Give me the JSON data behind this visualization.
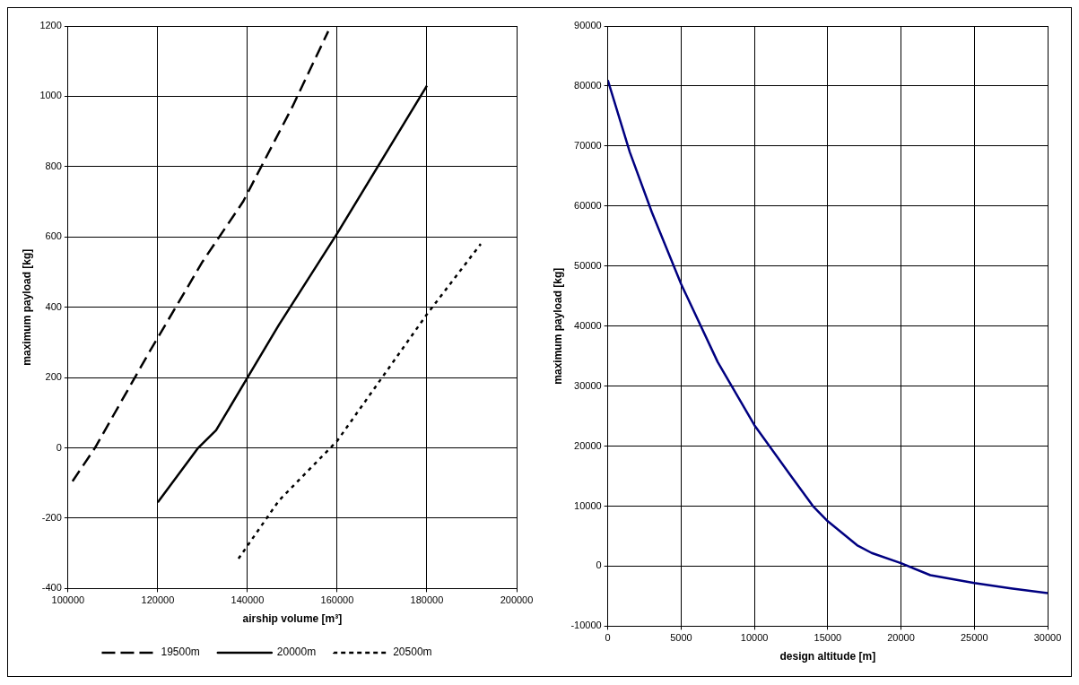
{
  "chart_data": [
    {
      "type": "line",
      "xlabel": "airship volume [m³]",
      "ylabel": "maximum payload [kg]",
      "xlim": [
        100000,
        200000
      ],
      "xticks": [
        100000,
        120000,
        140000,
        160000,
        180000,
        200000
      ],
      "ylim": [
        -400,
        1200
      ],
      "yticks": [
        -400,
        -200,
        0,
        200,
        400,
        600,
        800,
        1000,
        1200
      ],
      "grid": true,
      "legend": "bottom",
      "marker": "none",
      "series": [
        {
          "name": "19500m",
          "color": "#000000",
          "line_style": "dashed",
          "x": [
            101000,
            106000,
            118000,
            130000,
            139000,
            150000,
            158000
          ],
          "values": [
            -95,
            0,
            270,
            530,
            700,
            970,
            1185
          ]
        },
        {
          "name": "20000m",
          "color": "#000000",
          "line_style": "solid",
          "x": [
            120000,
            129000,
            133000,
            140000,
            147000,
            160000,
            180000
          ],
          "values": [
            -155,
            0,
            50,
            200,
            350,
            610,
            1030
          ]
        },
        {
          "name": "20500m",
          "color": "#000000",
          "line_style": "dotted",
          "x": [
            138000,
            147000,
            160000,
            170000,
            180000,
            192000
          ],
          "values": [
            -315,
            -150,
            20,
            200,
            380,
            580
          ]
        }
      ]
    },
    {
      "type": "line",
      "xlabel": "design altitude [m]",
      "ylabel": "maximum payload [kg]",
      "xlim": [
        0,
        30000
      ],
      "xticks": [
        0,
        5000,
        10000,
        15000,
        20000,
        25000,
        30000
      ],
      "ylim": [
        -10000,
        90000
      ],
      "yticks": [
        -10000,
        0,
        10000,
        20000,
        30000,
        40000,
        50000,
        60000,
        70000,
        80000,
        90000
      ],
      "grid": true,
      "legend": false,
      "marker": "none",
      "series": [
        {
          "color": "#000080",
          "line_style": "solid",
          "x": [
            0,
            1500,
            3000,
            5000,
            7500,
            10000,
            12500,
            14000,
            15000,
            17000,
            18000,
            20000,
            22000,
            25000,
            27500,
            30000
          ],
          "values": [
            81000,
            69000,
            59000,
            47000,
            34000,
            23500,
            15000,
            10000,
            7500,
            3500,
            2200,
            500,
            -1500,
            -2800,
            -3700,
            -4500
          ]
        }
      ]
    }
  ]
}
